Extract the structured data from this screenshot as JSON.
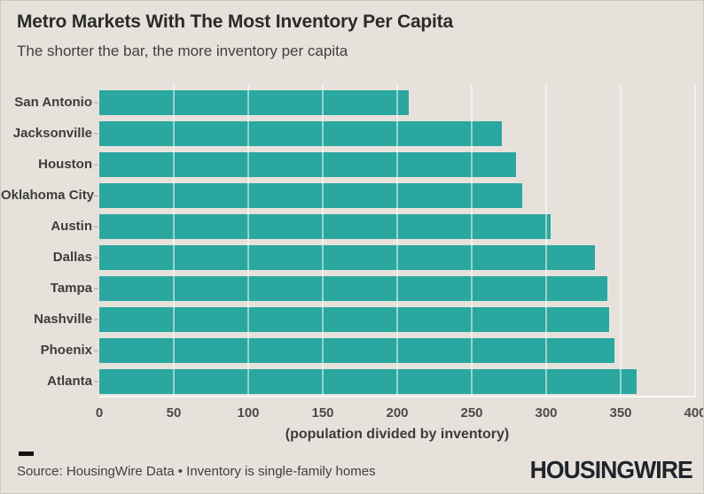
{
  "header": {
    "title": "Metro Markets With The Most Inventory Per Capita",
    "subtitle": "The shorter the bar, the more inventory per capita"
  },
  "footer": {
    "source_text": "Source: HousingWire Data • Inventory is single-family homes",
    "logo_text": "HOUSINGWIRE"
  },
  "colors": {
    "bar": "#2AA7A0",
    "background": "#E6E2DB",
    "gridline": "rgba(255,255,255,0.5)",
    "title_text": "#2B2B2B",
    "body_text": "#3F3F3F",
    "logo_text": "#20242A"
  },
  "chart_data": {
    "type": "bar",
    "orientation": "horizontal",
    "title": "Metro Markets With The Most Inventory Per Capita",
    "subtitle": "The shorter the bar, the more inventory per capita",
    "categories": [
      "San Antonio",
      "Jacksonville",
      "Houston",
      "Oklahoma City",
      "Austin",
      "Dallas",
      "Tampa",
      "Nashville",
      "Phoenix",
      "Atlanta"
    ],
    "values": [
      208,
      270,
      280,
      284,
      303,
      333,
      341,
      342,
      346,
      361
    ],
    "xlabel": "(population divided by inventory)",
    "ylabel": "",
    "xlim": [
      0,
      400
    ],
    "xticks": [
      0,
      50,
      100,
      150,
      200,
      250,
      300,
      350,
      400
    ],
    "grid": true,
    "gridlines_over_bars": true,
    "legend": false,
    "bar_color": "#2AA7A0"
  }
}
